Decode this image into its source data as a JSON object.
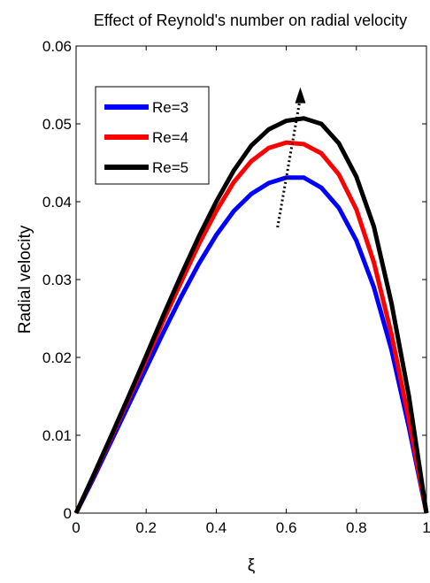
{
  "chart_data": {
    "type": "line",
    "title": "Effect of Reynold's number on radial velocity",
    "xlabel": "ξ",
    "ylabel": "Radial velocity",
    "xlim": [
      0,
      1
    ],
    "ylim": [
      0,
      0.06
    ],
    "xticks": [
      0,
      0.2,
      0.4,
      0.6,
      0.8,
      1
    ],
    "xtick_labels": [
      "0",
      "0.2",
      "0.4",
      "0.6",
      "0.8",
      "1"
    ],
    "yticks": [
      0,
      0.01,
      0.02,
      0.03,
      0.04,
      0.05,
      0.06
    ],
    "ytick_labels": [
      "0",
      "0.01",
      "0.02",
      "0.03",
      "0.04",
      "0.05",
      "0.06"
    ],
    "grid": false,
    "legend_position": "top-left",
    "x": [
      0,
      0.05,
      0.1,
      0.15,
      0.2,
      0.25,
      0.3,
      0.35,
      0.4,
      0.45,
      0.5,
      0.55,
      0.6,
      0.65,
      0.7,
      0.75,
      0.8,
      0.85,
      0.9,
      0.95,
      1.0
    ],
    "series": [
      {
        "name": "Re=3",
        "color": "#0000ff",
        "values": [
          0,
          0.0045,
          0.0092,
          0.0139,
          0.0186,
          0.0233,
          0.0278,
          0.032,
          0.0357,
          0.0388,
          0.041,
          0.0424,
          0.0431,
          0.0431,
          0.0418,
          0.0392,
          0.035,
          0.029,
          0.021,
          0.011,
          0
        ]
      },
      {
        "name": "Re=4",
        "color": "#ff0000",
        "values": [
          0,
          0.0048,
          0.0097,
          0.0147,
          0.0197,
          0.0248,
          0.0297,
          0.0345,
          0.0388,
          0.0425,
          0.0452,
          0.0469,
          0.0476,
          0.0474,
          0.0462,
          0.0435,
          0.039,
          0.0322,
          0.023,
          0.012,
          0
        ]
      },
      {
        "name": "Re=5",
        "color": "#000000",
        "values": [
          0,
          0.0049,
          0.0099,
          0.015,
          0.0202,
          0.0255,
          0.0306,
          0.0355,
          0.04,
          0.044,
          0.0472,
          0.0493,
          0.0504,
          0.0507,
          0.05,
          0.0475,
          0.0432,
          0.0368,
          0.027,
          0.015,
          0
        ]
      }
    ],
    "annotation": {
      "type": "dotted-arrow",
      "description": "increasing Re",
      "from": [
        0.575,
        0.0367
      ],
      "to": [
        0.64,
        0.0547
      ]
    }
  }
}
